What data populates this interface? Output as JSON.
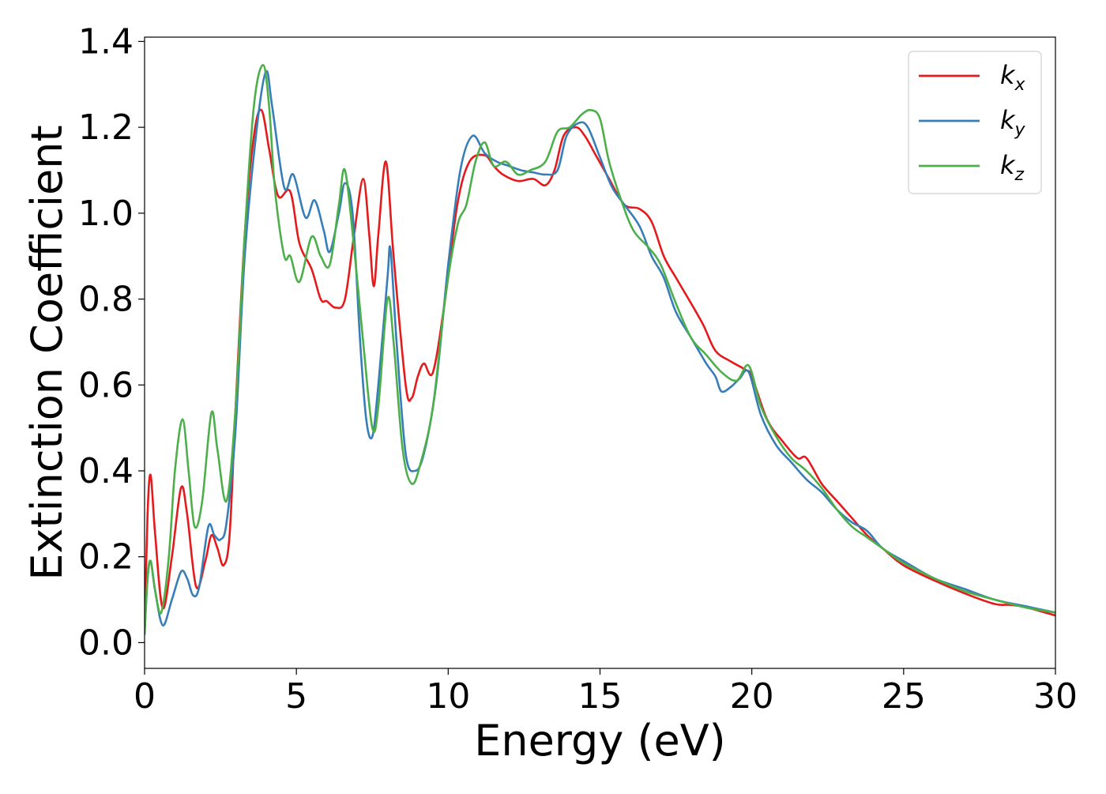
{
  "chart_data": {
    "type": "line",
    "xlabel": "Energy (eV)",
    "ylabel": "Extinction Coefficient",
    "xlim": [
      0,
      30
    ],
    "ylim": [
      -0.06,
      1.41
    ],
    "x_ticks": [
      "0",
      "5",
      "10",
      "15",
      "20",
      "25",
      "30"
    ],
    "y_ticks": [
      "0.0",
      "0.2",
      "0.4",
      "0.6",
      "0.8",
      "1.0",
      "1.2",
      "1.4"
    ],
    "grid": false,
    "legend_position": "top-right",
    "series": [
      {
        "name": "k",
        "subscript": "x",
        "color": "#e41a1c",
        "points": [
          [
            0,
            0.02
          ],
          [
            0.1,
            0.3
          ],
          [
            0.2,
            0.39
          ],
          [
            0.35,
            0.25
          ],
          [
            0.6,
            0.08
          ],
          [
            0.9,
            0.2
          ],
          [
            1.2,
            0.36
          ],
          [
            1.4,
            0.3
          ],
          [
            1.7,
            0.13
          ],
          [
            2.0,
            0.19
          ],
          [
            2.2,
            0.25
          ],
          [
            2.4,
            0.22
          ],
          [
            2.6,
            0.18
          ],
          [
            2.8,
            0.25
          ],
          [
            3.0,
            0.55
          ],
          [
            3.3,
            0.95
          ],
          [
            3.6,
            1.18
          ],
          [
            3.85,
            1.24
          ],
          [
            4.1,
            1.15
          ],
          [
            4.4,
            1.04
          ],
          [
            4.8,
            1.05
          ],
          [
            5.1,
            0.93
          ],
          [
            5.5,
            0.87
          ],
          [
            5.8,
            0.8
          ],
          [
            6.0,
            0.795
          ],
          [
            6.3,
            0.78
          ],
          [
            6.6,
            0.8
          ],
          [
            6.9,
            0.95
          ],
          [
            7.2,
            1.08
          ],
          [
            7.4,
            0.95
          ],
          [
            7.55,
            0.83
          ],
          [
            7.7,
            0.95
          ],
          [
            7.95,
            1.12
          ],
          [
            8.2,
            0.9
          ],
          [
            8.6,
            0.6
          ],
          [
            8.8,
            0.57
          ],
          [
            9.0,
            0.62
          ],
          [
            9.2,
            0.65
          ],
          [
            9.5,
            0.63
          ],
          [
            9.9,
            0.8
          ],
          [
            10.3,
            1.02
          ],
          [
            10.7,
            1.12
          ],
          [
            11.2,
            1.135
          ],
          [
            11.5,
            1.11
          ],
          [
            11.8,
            1.09
          ],
          [
            12.3,
            1.075
          ],
          [
            12.8,
            1.08
          ],
          [
            13.2,
            1.065
          ],
          [
            13.5,
            1.1
          ],
          [
            13.8,
            1.18
          ],
          [
            14.2,
            1.2
          ],
          [
            14.5,
            1.18
          ],
          [
            14.9,
            1.13
          ],
          [
            15.3,
            1.08
          ],
          [
            15.8,
            1.02
          ],
          [
            16.3,
            1.01
          ],
          [
            16.7,
            0.98
          ],
          [
            17.1,
            0.9
          ],
          [
            17.5,
            0.85
          ],
          [
            18.0,
            0.79
          ],
          [
            18.4,
            0.74
          ],
          [
            18.8,
            0.68
          ],
          [
            19.3,
            0.655
          ],
          [
            19.8,
            0.635
          ],
          [
            20.0,
            0.62
          ],
          [
            20.5,
            0.52
          ],
          [
            21.0,
            0.47
          ],
          [
            21.5,
            0.43
          ],
          [
            21.8,
            0.43
          ],
          [
            22.3,
            0.37
          ],
          [
            22.8,
            0.33
          ],
          [
            23.3,
            0.29
          ],
          [
            23.8,
            0.25
          ],
          [
            24.3,
            0.22
          ],
          [
            25.0,
            0.18
          ],
          [
            26.0,
            0.145
          ],
          [
            27.0,
            0.115
          ],
          [
            28.0,
            0.09
          ],
          [
            28.5,
            0.088
          ],
          [
            29.0,
            0.083
          ],
          [
            30,
            0.063
          ]
        ]
      },
      {
        "name": "k",
        "subscript": "y",
        "color": "#377eb8",
        "points": [
          [
            0,
            0.02
          ],
          [
            0.1,
            0.15
          ],
          [
            0.2,
            0.19
          ],
          [
            0.35,
            0.12
          ],
          [
            0.6,
            0.04
          ],
          [
            0.9,
            0.1
          ],
          [
            1.2,
            0.165
          ],
          [
            1.4,
            0.15
          ],
          [
            1.6,
            0.11
          ],
          [
            1.8,
            0.13
          ],
          [
            2.1,
            0.27
          ],
          [
            2.3,
            0.25
          ],
          [
            2.5,
            0.24
          ],
          [
            2.7,
            0.28
          ],
          [
            3.0,
            0.5
          ],
          [
            3.3,
            0.9
          ],
          [
            3.7,
            1.2
          ],
          [
            4.0,
            1.33
          ],
          [
            4.2,
            1.25
          ],
          [
            4.6,
            1.06
          ],
          [
            4.9,
            1.09
          ],
          [
            5.3,
            0.99
          ],
          [
            5.6,
            1.03
          ],
          [
            5.9,
            0.96
          ],
          [
            6.1,
            0.91
          ],
          [
            6.4,
            1.0
          ],
          [
            6.6,
            1.07
          ],
          [
            6.85,
            1.0
          ],
          [
            7.1,
            0.7
          ],
          [
            7.3,
            0.52
          ],
          [
            7.5,
            0.48
          ],
          [
            7.7,
            0.6
          ],
          [
            8.0,
            0.85
          ],
          [
            8.1,
            0.915
          ],
          [
            8.3,
            0.7
          ],
          [
            8.6,
            0.44
          ],
          [
            8.9,
            0.4
          ],
          [
            9.2,
            0.44
          ],
          [
            9.6,
            0.6
          ],
          [
            10.0,
            0.88
          ],
          [
            10.4,
            1.1
          ],
          [
            10.8,
            1.18
          ],
          [
            11.2,
            1.14
          ],
          [
            11.6,
            1.12
          ],
          [
            12.0,
            1.11
          ],
          [
            12.4,
            1.1
          ],
          [
            12.8,
            1.095
          ],
          [
            13.2,
            1.09
          ],
          [
            13.6,
            1.1
          ],
          [
            13.9,
            1.18
          ],
          [
            14.3,
            1.21
          ],
          [
            14.6,
            1.2
          ],
          [
            15.0,
            1.13
          ],
          [
            15.4,
            1.06
          ],
          [
            15.8,
            1.02
          ],
          [
            16.3,
            0.97
          ],
          [
            16.7,
            0.9
          ],
          [
            17.1,
            0.85
          ],
          [
            17.5,
            0.77
          ],
          [
            18.0,
            0.71
          ],
          [
            18.5,
            0.65
          ],
          [
            18.8,
            0.62
          ],
          [
            19.0,
            0.585
          ],
          [
            19.3,
            0.595
          ],
          [
            19.6,
            0.615
          ],
          [
            19.9,
            0.63
          ],
          [
            20.3,
            0.53
          ],
          [
            20.8,
            0.46
          ],
          [
            21.3,
            0.42
          ],
          [
            21.8,
            0.38
          ],
          [
            22.3,
            0.35
          ],
          [
            22.8,
            0.31
          ],
          [
            23.3,
            0.28
          ],
          [
            23.8,
            0.26
          ],
          [
            24.3,
            0.22
          ],
          [
            25.0,
            0.19
          ],
          [
            26.0,
            0.15
          ],
          [
            27.0,
            0.125
          ],
          [
            28.0,
            0.1
          ],
          [
            29.0,
            0.085
          ],
          [
            30,
            0.07
          ]
        ]
      },
      {
        "name": "k",
        "subscript": "z",
        "color": "#4daf4a",
        "points": [
          [
            0,
            0.02
          ],
          [
            0.1,
            0.15
          ],
          [
            0.2,
            0.19
          ],
          [
            0.35,
            0.12
          ],
          [
            0.55,
            0.07
          ],
          [
            0.8,
            0.2
          ],
          [
            1.0,
            0.4
          ],
          [
            1.25,
            0.52
          ],
          [
            1.45,
            0.4
          ],
          [
            1.65,
            0.27
          ],
          [
            1.9,
            0.33
          ],
          [
            2.2,
            0.535
          ],
          [
            2.4,
            0.45
          ],
          [
            2.7,
            0.33
          ],
          [
            3.0,
            0.55
          ],
          [
            3.3,
            0.95
          ],
          [
            3.6,
            1.25
          ],
          [
            3.9,
            1.345
          ],
          [
            4.1,
            1.25
          ],
          [
            4.3,
            1.05
          ],
          [
            4.6,
            0.9
          ],
          [
            4.8,
            0.9
          ],
          [
            5.1,
            0.84
          ],
          [
            5.5,
            0.945
          ],
          [
            5.8,
            0.9
          ],
          [
            6.1,
            0.88
          ],
          [
            6.4,
            1.02
          ],
          [
            6.6,
            1.1
          ],
          [
            6.9,
            0.92
          ],
          [
            7.2,
            0.7
          ],
          [
            7.5,
            0.5
          ],
          [
            7.7,
            0.55
          ],
          [
            8.0,
            0.8
          ],
          [
            8.2,
            0.7
          ],
          [
            8.5,
            0.45
          ],
          [
            8.8,
            0.37
          ],
          [
            9.1,
            0.42
          ],
          [
            9.5,
            0.55
          ],
          [
            9.9,
            0.8
          ],
          [
            10.3,
            0.97
          ],
          [
            10.6,
            1.02
          ],
          [
            10.9,
            1.12
          ],
          [
            11.2,
            1.165
          ],
          [
            11.5,
            1.11
          ],
          [
            11.9,
            1.12
          ],
          [
            12.3,
            1.09
          ],
          [
            12.7,
            1.1
          ],
          [
            13.2,
            1.12
          ],
          [
            13.6,
            1.19
          ],
          [
            14.0,
            1.2
          ],
          [
            14.4,
            1.23
          ],
          [
            14.7,
            1.24
          ],
          [
            15.0,
            1.22
          ],
          [
            15.3,
            1.12
          ],
          [
            15.7,
            1.03
          ],
          [
            16.1,
            0.96
          ],
          [
            16.6,
            0.92
          ],
          [
            17.0,
            0.88
          ],
          [
            17.5,
            0.79
          ],
          [
            18.0,
            0.71
          ],
          [
            18.5,
            0.67
          ],
          [
            19.0,
            0.63
          ],
          [
            19.5,
            0.61
          ],
          [
            19.9,
            0.645
          ],
          [
            20.3,
            0.55
          ],
          [
            20.8,
            0.48
          ],
          [
            21.3,
            0.43
          ],
          [
            21.8,
            0.4
          ],
          [
            22.3,
            0.36
          ],
          [
            22.8,
            0.31
          ],
          [
            23.3,
            0.27
          ],
          [
            23.8,
            0.245
          ],
          [
            24.3,
            0.22
          ],
          [
            25.0,
            0.185
          ],
          [
            26.0,
            0.15
          ],
          [
            27.0,
            0.12
          ],
          [
            28.0,
            0.1
          ],
          [
            29.0,
            0.082
          ],
          [
            30,
            0.07
          ]
        ]
      }
    ]
  }
}
